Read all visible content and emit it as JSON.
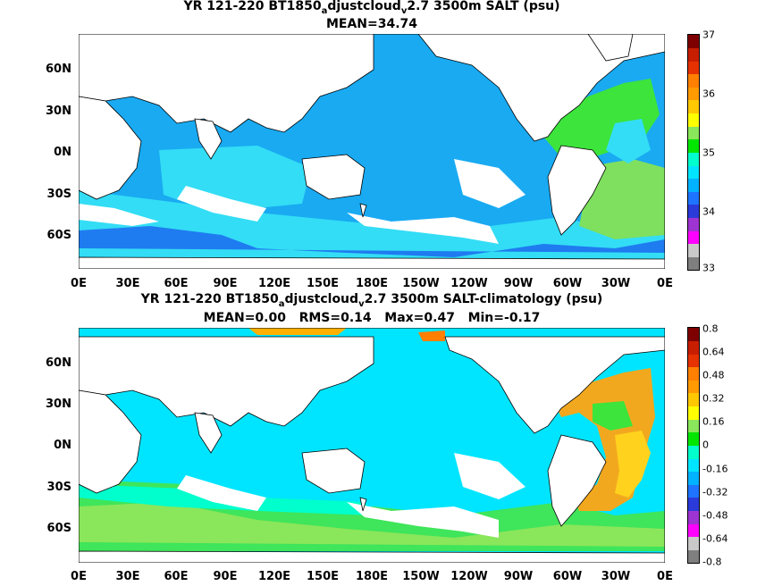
{
  "panels": [
    {
      "id": "top",
      "title_line1": "YR 121-220 BT1850",
      "title_sub1": "a",
      "title_mid": "djustcloud",
      "title_sub2": "v",
      "title_end": "2.7 3500m SALT (psu)",
      "title_line2": "MEAN=34.74",
      "colorbar_labels": [
        "37",
        "36",
        "35",
        "34",
        "33"
      ],
      "colorbar_colors": [
        "#7f7f7f",
        "#c9c9c9",
        "#ff00ff",
        "#9e34d1",
        "#2b3bd9",
        "#1f74ff",
        "#00b2ff",
        "#00e5ff",
        "#00ffcc",
        "#00e600",
        "#8ae65a",
        "#ffff00",
        "#ffc800",
        "#ff9b00",
        "#ff7f00",
        "#e63200",
        "#c81e00",
        "#7f0000"
      ],
      "ocean_base": "#19aaf2",
      "features": [
        {
          "name": "north-atlantic-green",
          "color": "#3ce43c"
        },
        {
          "name": "south-atlantic-green",
          "color": "#7ee05e"
        },
        {
          "name": "southern-ocean-cyan",
          "color": "#33ddf5"
        },
        {
          "name": "deep-blue-patches",
          "color": "#1f7bf0"
        }
      ]
    },
    {
      "id": "bottom",
      "title_line1": "YR 121-220 BT1850",
      "title_sub1": "a",
      "title_mid": "djustcloud",
      "title_sub2": "v",
      "title_end": "2.7 3500m SALT-climatology (psu)",
      "title_line2": "MEAN=0.00   RMS=0.14   Max=0.47   Min=-0.17",
      "colorbar_labels": [
        "0.8",
        "0.64",
        "0.48",
        "0.32",
        "0.16",
        "0",
        "-0.16",
        "-0.32",
        "-0.48",
        "-0.64",
        "-0.8"
      ],
      "colorbar_colors": [
        "#7f7f7f",
        "#c9c9c9",
        "#ff00ff",
        "#9e34d1",
        "#2b3bd9",
        "#1f74ff",
        "#00b2ff",
        "#00e5ff",
        "#00ffcc",
        "#00e600",
        "#8ae65a",
        "#ffff00",
        "#ffc800",
        "#ff9b00",
        "#ff7f00",
        "#e63200",
        "#c81e00",
        "#7f0000"
      ],
      "ocean_base": "#00e5ff",
      "features": [
        {
          "name": "atlantic-orange",
          "color": "#f2a81e"
        },
        {
          "name": "atlantic-yellow",
          "color": "#ffd21e"
        },
        {
          "name": "southern-green",
          "color": "#3fe55a"
        },
        {
          "name": "arctic-orange",
          "color": "#ffb000"
        }
      ]
    }
  ],
  "lat_labels": [
    "60N",
    "30N",
    "0N",
    "30S",
    "60S"
  ],
  "lon_labels": [
    "0E",
    "30E",
    "60E",
    "90E",
    "120E",
    "150E",
    "180E",
    "150W",
    "120W",
    "90W",
    "60W",
    "30W",
    "0E"
  ]
}
